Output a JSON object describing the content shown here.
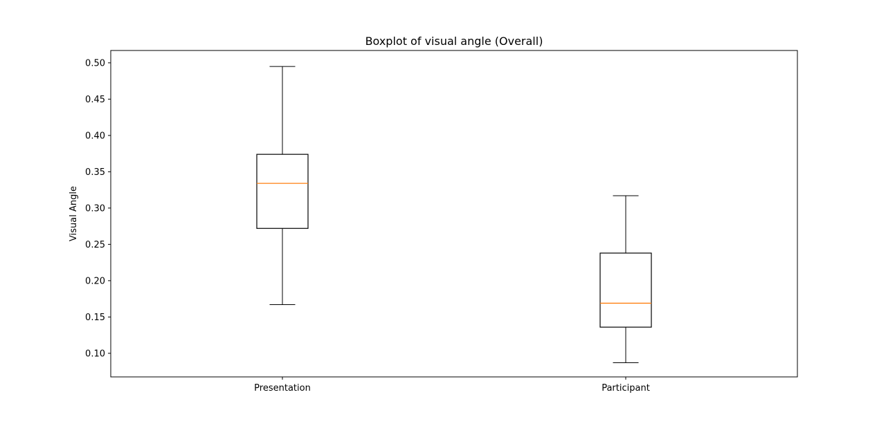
{
  "chart_data": {
    "type": "boxplot",
    "title": "Boxplot of visual angle (Overall)",
    "xlabel": "",
    "ylabel": "Visual Angle",
    "ylim": [
      0.0675,
      0.517
    ],
    "yticks": [
      0.1,
      0.15,
      0.2,
      0.25,
      0.3,
      0.35,
      0.4,
      0.45,
      0.5
    ],
    "ytick_labels": [
      "0.10",
      "0.15",
      "0.20",
      "0.25",
      "0.30",
      "0.35",
      "0.40",
      "0.45",
      "0.50"
    ],
    "grid": false,
    "median_color": "#ff7f0e",
    "box_color": "#000000",
    "categories": [
      "Presentation",
      "Participant"
    ],
    "boxes": [
      {
        "category": "Presentation",
        "whisker_low": 0.167,
        "q1": 0.272,
        "median": 0.334,
        "q3": 0.374,
        "whisker_high": 0.495
      },
      {
        "category": "Participant",
        "whisker_low": 0.087,
        "q1": 0.136,
        "median": 0.169,
        "q3": 0.238,
        "whisker_high": 0.317
      }
    ]
  }
}
